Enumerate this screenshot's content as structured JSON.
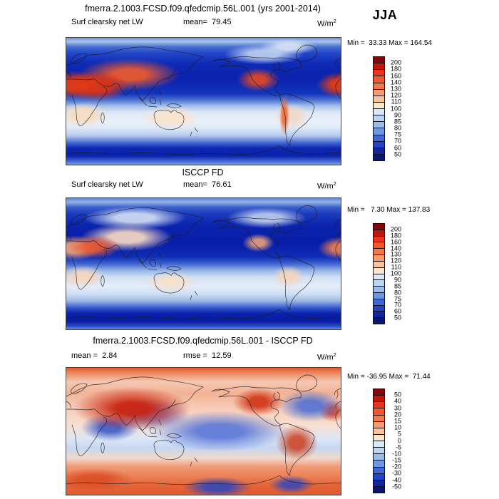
{
  "season": "JJA",
  "colorbar_colors": [
    "#860308",
    "#BE1607",
    "#E8331D",
    "#F4562B",
    "#F57748",
    "#F89B6C",
    "#FBC39C",
    "#FBE6CF",
    "#DBE8F7",
    "#BDD4F1",
    "#9BBCEA",
    "#6E97E1",
    "#3F68D6",
    "#2344C6",
    "#13249F",
    "#091572"
  ],
  "panels": [
    {
      "title": "fmerra.2.1003.FCSD.f09.qfedcmip.56L.001 (yrs 2001-2014)",
      "left_label": "Surf clearsky net LW",
      "mid_label": "mean=  79.45",
      "units_base": "W/m",
      "units_exp": "2",
      "minmax": "Min =  33.33 Max = 164.54",
      "cb_labels": [
        "200",
        "180",
        "160",
        "140",
        "130",
        "120",
        "110",
        "100",
        "90",
        "85",
        "80",
        "75",
        "70",
        "60",
        "50"
      ]
    },
    {
      "title": "ISCCP FD",
      "left_label": "Surf clearsky net LW",
      "mid_label": "mean=  76.61",
      "units_base": "W/m",
      "units_exp": "2",
      "minmax": "Min =   7.30 Max = 137.83",
      "cb_labels": [
        "200",
        "180",
        "160",
        "140",
        "130",
        "120",
        "110",
        "100",
        "90",
        "85",
        "80",
        "75",
        "70",
        "60",
        "50"
      ]
    },
    {
      "title": "fmerra.2.1003.FCSD.f09.qfedcmip.56L.001 - ISCCP FD",
      "left_label": "mean =  2.84",
      "mid_label": "rmse =  12.59",
      "units_base": "W/m",
      "units_exp": "2",
      "minmax": "Min = -36.95 Max =  71.44",
      "cb_labels": [
        "50",
        "40",
        "30",
        "20",
        "15",
        "10",
        "5",
        "0",
        "-5",
        "-10",
        "-15",
        "-20",
        "-30",
        "-40",
        "-50"
      ]
    }
  ],
  "chart_data": [
    {
      "type": "heatmap",
      "title": "fmerra.2.1003.FCSD.f09.qfedcmip.56L.001 (yrs 2001-2014)",
      "variable": "Surf clearsky net LW",
      "season": "JJA",
      "units": "W/m2",
      "mean": 79.45,
      "min": 33.33,
      "max": 164.54,
      "contour_levels": [
        50,
        60,
        70,
        75,
        80,
        85,
        90,
        100,
        110,
        120,
        130,
        140,
        160,
        180,
        200
      ],
      "projection": "global lat-lon map, Pacific-centered",
      "palette": "blue-to-red diverging, 16 classes",
      "legend_position": "right"
    },
    {
      "type": "heatmap",
      "title": "ISCCP FD",
      "variable": "Surf clearsky net LW",
      "season": "JJA",
      "units": "W/m2",
      "mean": 76.61,
      "min": 7.3,
      "max": 137.83,
      "contour_levels": [
        50,
        60,
        70,
        75,
        80,
        85,
        90,
        100,
        110,
        120,
        130,
        140,
        160,
        180,
        200
      ],
      "projection": "global lat-lon map, Pacific-centered",
      "palette": "blue-to-red diverging, 16 classes",
      "legend_position": "right"
    },
    {
      "type": "heatmap",
      "title": "fmerra.2.1003.FCSD.f09.qfedcmip.56L.001 - ISCCP FD",
      "variable": "Surf clearsky net LW difference",
      "season": "JJA",
      "units": "W/m2",
      "mean": 2.84,
      "rmse": 12.59,
      "min": -36.95,
      "max": 71.44,
      "contour_levels": [
        -50,
        -40,
        -30,
        -20,
        -15,
        -10,
        -5,
        0,
        5,
        10,
        15,
        20,
        30,
        40,
        50
      ],
      "projection": "global lat-lon map, Pacific-centered",
      "palette": "blue-to-red diverging, 16 classes",
      "legend_position": "right"
    }
  ]
}
